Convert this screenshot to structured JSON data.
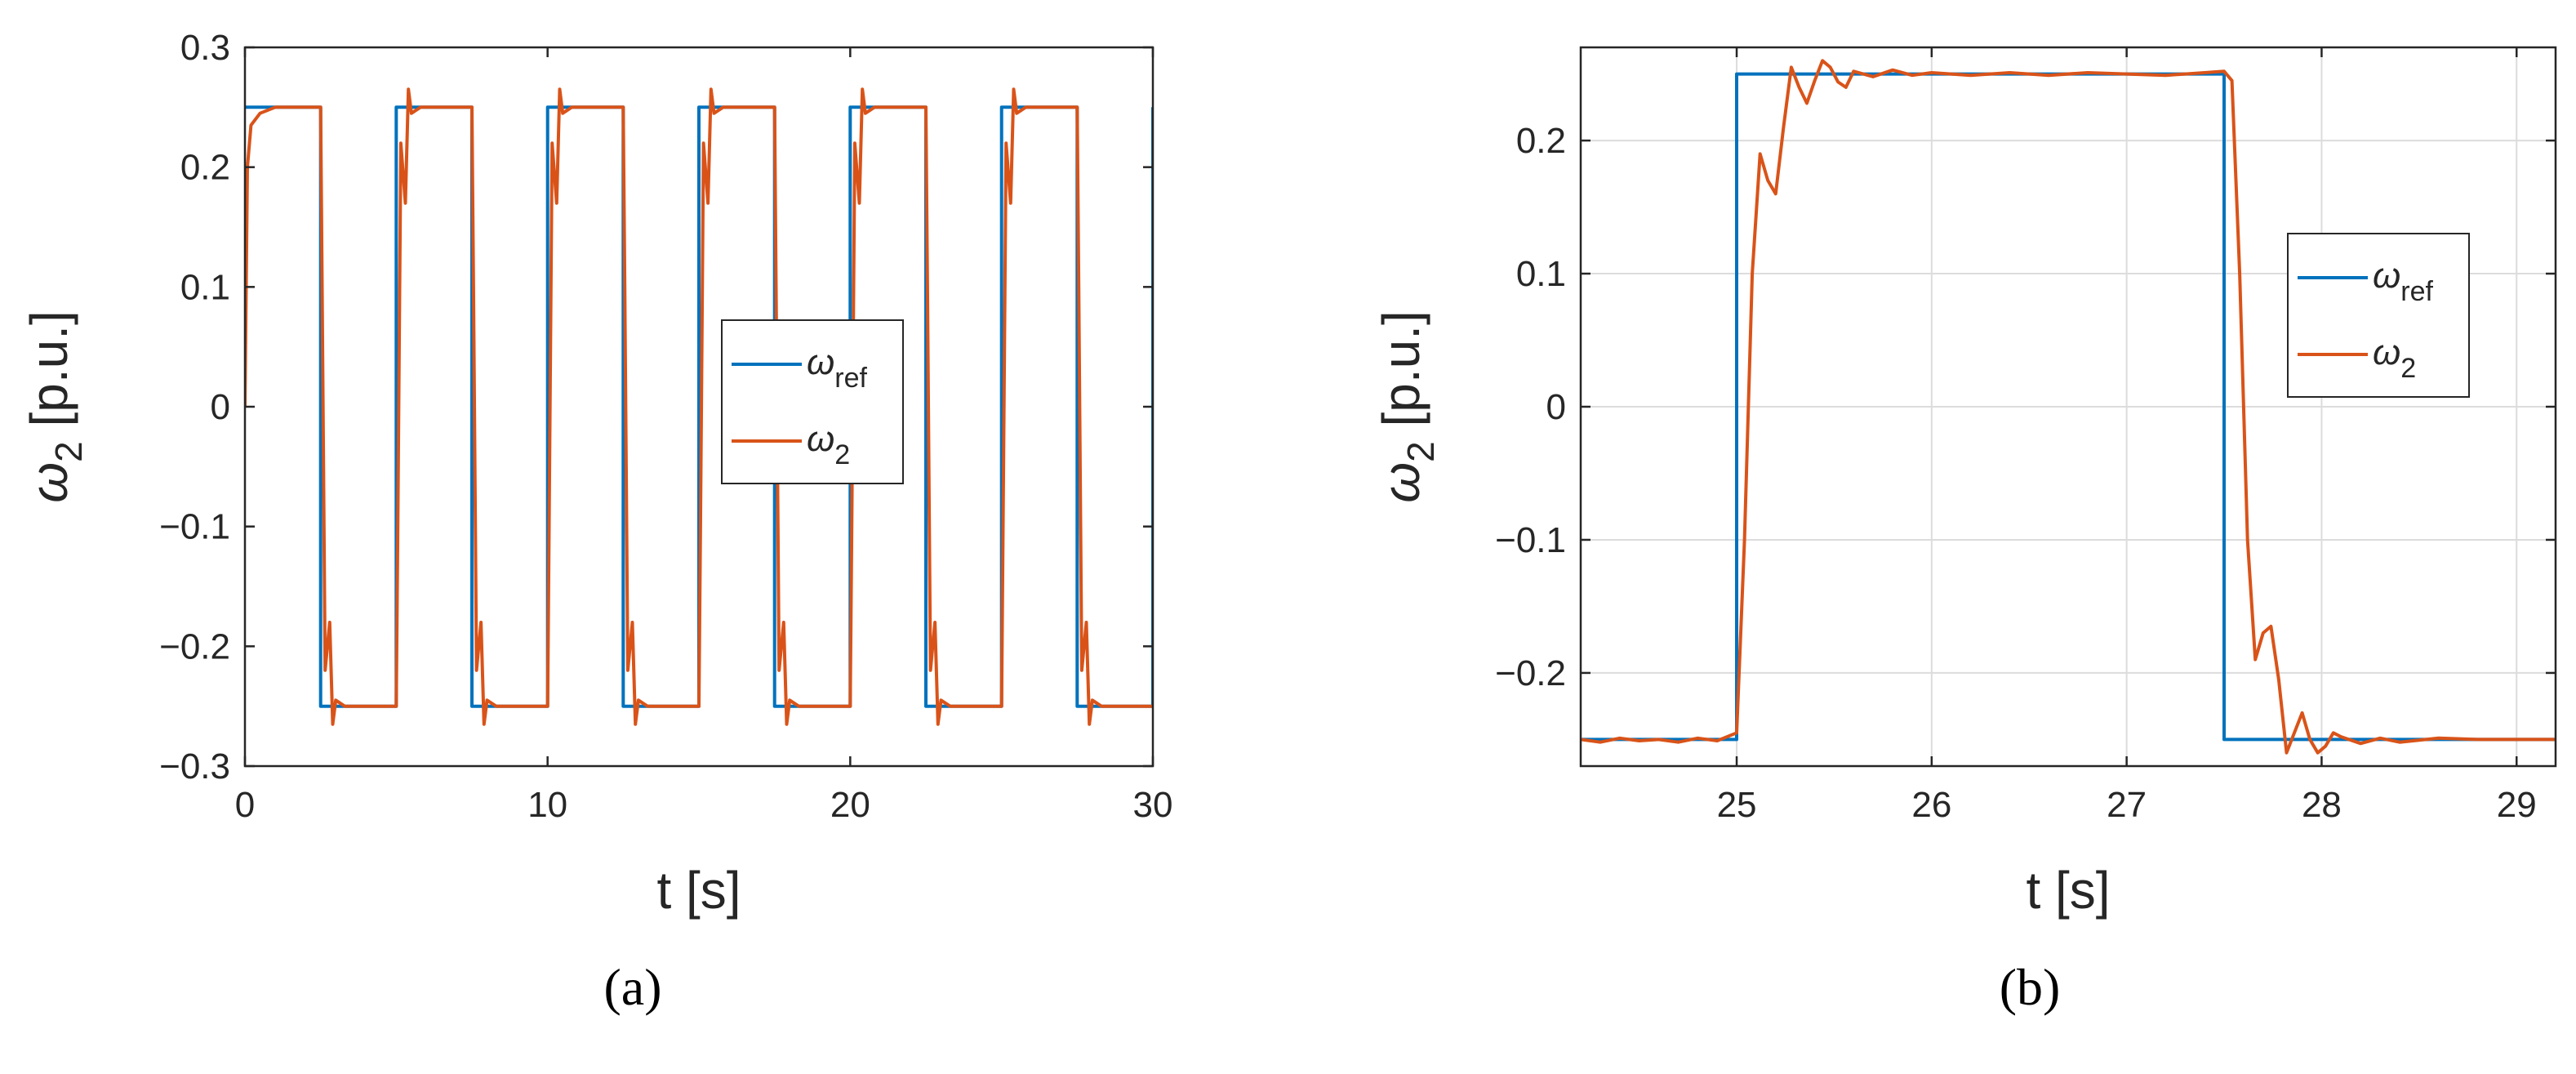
{
  "figure": {
    "captions": [
      "(a)",
      "(b)"
    ]
  },
  "colors": {
    "ref": "#0072BD",
    "omega2": "#D95319",
    "grid": "#DCDCDC",
    "axis": "#262626"
  },
  "chart_data": [
    {
      "type": "line",
      "title": "",
      "xlabel": "t [s]",
      "ylabel": "ω2 [p.u.]",
      "xlim": [
        0,
        30
      ],
      "ylim": [
        -0.3,
        0.3
      ],
      "grid": false,
      "legend_position": "center-right",
      "xticks": [
        "0",
        "10",
        "20",
        "30"
      ],
      "yticks": [
        "−0.3",
        "−0.2",
        "−0.1",
        "0",
        "0.1",
        "0.2",
        "0.3"
      ],
      "series": [
        {
          "name": "ωref",
          "legend_main": "ω",
          "legend_sub": "ref",
          "x": [
            0,
            2.5,
            2.5,
            5,
            5,
            7.5,
            7.5,
            10,
            10,
            12.5,
            12.5,
            15,
            15,
            17.5,
            17.5,
            20,
            20,
            22.5,
            22.5,
            25,
            25,
            27.5,
            27.5,
            30,
            30
          ],
          "y": [
            0.25,
            0.25,
            -0.25,
            -0.25,
            0.25,
            0.25,
            -0.25,
            -0.25,
            0.25,
            0.25,
            -0.25,
            -0.25,
            0.25,
            0.25,
            -0.25,
            -0.25,
            0.25,
            0.25,
            -0.25,
            -0.25,
            0.25,
            0.25,
            -0.25,
            -0.25,
            0.25
          ]
        },
        {
          "name": "ω2",
          "legend_main": "ω",
          "legend_sub": "2",
          "x": [
            0,
            0.08,
            0.2,
            0.5,
            1.0,
            2.5,
            2.55,
            2.65,
            2.8,
            2.9,
            3.0,
            3.3,
            5.0,
            5.05,
            5.15,
            5.3,
            5.4,
            5.5,
            5.8,
            7.5,
            7.55,
            7.65,
            7.8,
            7.9,
            8.0,
            8.3,
            10.0,
            10.05,
            10.15,
            10.3,
            10.4,
            10.5,
            10.8,
            12.5,
            12.55,
            12.65,
            12.8,
            12.9,
            13.0,
            13.3,
            15.0,
            15.05,
            15.15,
            15.3,
            15.4,
            15.5,
            15.8,
            17.5,
            17.55,
            17.65,
            17.8,
            17.9,
            18.0,
            18.3,
            20.0,
            20.05,
            20.15,
            20.3,
            20.4,
            20.5,
            20.8,
            22.5,
            22.55,
            22.65,
            22.8,
            22.9,
            23.0,
            23.3,
            25.0,
            25.05,
            25.15,
            25.3,
            25.4,
            25.5,
            25.8,
            27.5,
            27.55,
            27.65,
            27.8,
            27.9,
            28.0,
            28.3,
            30.0
          ],
          "y": [
            0,
            0.2,
            0.235,
            0.245,
            0.25,
            0.25,
            0.1,
            -0.22,
            -0.18,
            -0.265,
            -0.245,
            -0.25,
            -0.25,
            -0.1,
            0.22,
            0.17,
            0.265,
            0.245,
            0.25,
            0.25,
            0.1,
            -0.22,
            -0.18,
            -0.265,
            -0.245,
            -0.25,
            -0.25,
            -0.1,
            0.22,
            0.17,
            0.265,
            0.245,
            0.25,
            0.25,
            0.1,
            -0.22,
            -0.18,
            -0.265,
            -0.245,
            -0.25,
            -0.25,
            -0.1,
            0.22,
            0.17,
            0.265,
            0.245,
            0.25,
            0.25,
            0.1,
            -0.22,
            -0.18,
            -0.265,
            -0.245,
            -0.25,
            -0.25,
            -0.1,
            0.22,
            0.17,
            0.265,
            0.245,
            0.25,
            0.25,
            0.1,
            -0.22,
            -0.18,
            -0.265,
            -0.245,
            -0.25,
            -0.25,
            -0.1,
            0.22,
            0.17,
            0.265,
            0.245,
            0.25,
            0.25,
            0.1,
            -0.22,
            -0.18,
            -0.265,
            -0.245,
            -0.25,
            -0.25
          ]
        }
      ]
    },
    {
      "type": "line",
      "title": "",
      "xlabel": "t [s]",
      "ylabel": "ω2 [p.u.]",
      "xlim": [
        24.2,
        29.2
      ],
      "ylim": [
        -0.27,
        0.27
      ],
      "grid": true,
      "legend_position": "center-right",
      "xticks": [
        "25",
        "26",
        "27",
        "28",
        "29"
      ],
      "yticks": [
        "−0.2",
        "−0.1",
        "0",
        "0.1",
        "0.2"
      ],
      "series": [
        {
          "name": "ωref",
          "legend_main": "ω",
          "legend_sub": "ref",
          "x": [
            24.2,
            25.0,
            25.0,
            27.5,
            27.5,
            29.2
          ],
          "y": [
            -0.25,
            -0.25,
            0.25,
            0.25,
            -0.25,
            -0.25
          ]
        },
        {
          "name": "ω2",
          "legend_main": "ω",
          "legend_sub": "2",
          "x": [
            24.2,
            24.3,
            24.4,
            24.5,
            24.6,
            24.7,
            24.8,
            24.9,
            25.0,
            25.04,
            25.08,
            25.12,
            25.16,
            25.2,
            25.24,
            25.28,
            25.32,
            25.36,
            25.4,
            25.44,
            25.48,
            25.52,
            25.56,
            25.6,
            25.7,
            25.8,
            25.9,
            26.0,
            26.2,
            26.4,
            26.6,
            26.8,
            27.0,
            27.2,
            27.4,
            27.5,
            27.54,
            27.58,
            27.62,
            27.66,
            27.7,
            27.74,
            27.78,
            27.82,
            27.86,
            27.9,
            27.94,
            27.98,
            28.02,
            28.06,
            28.1,
            28.2,
            28.3,
            28.4,
            28.6,
            28.8,
            29.0,
            29.2
          ],
          "y": [
            -0.25,
            -0.252,
            -0.249,
            -0.251,
            -0.25,
            -0.252,
            -0.249,
            -0.251,
            -0.245,
            -0.1,
            0.1,
            0.19,
            0.17,
            0.16,
            0.21,
            0.255,
            0.24,
            0.228,
            0.245,
            0.26,
            0.255,
            0.244,
            0.24,
            0.252,
            0.248,
            0.253,
            0.249,
            0.251,
            0.249,
            0.251,
            0.249,
            0.251,
            0.25,
            0.249,
            0.251,
            0.252,
            0.245,
            0.1,
            -0.1,
            -0.19,
            -0.17,
            -0.165,
            -0.205,
            -0.26,
            -0.245,
            -0.23,
            -0.25,
            -0.26,
            -0.255,
            -0.245,
            -0.248,
            -0.253,
            -0.249,
            -0.252,
            -0.249,
            -0.25,
            -0.25,
            -0.25
          ]
        }
      ]
    }
  ]
}
